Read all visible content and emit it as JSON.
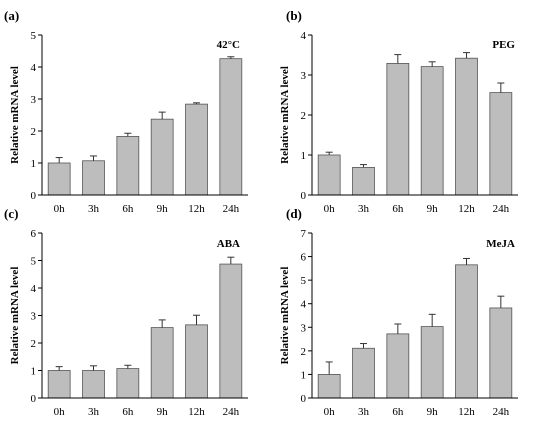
{
  "colors": {
    "bar": "#bdbdbd",
    "bar_edge": "#555555",
    "axis": "#000000"
  },
  "chart_data": [
    {
      "type": "bar",
      "panel": "(a)",
      "treatment": "42°C",
      "categories": [
        "0h",
        "3h",
        "6h",
        "9h",
        "12h",
        "24h"
      ],
      "values": [
        1.0,
        1.07,
        1.83,
        2.37,
        2.84,
        4.26
      ],
      "errors": [
        0.17,
        0.15,
        0.1,
        0.22,
        0.04,
        0.06
      ],
      "ylabel": "Relative mRNA level",
      "ylim": [
        0,
        5
      ],
      "yticks": [
        0,
        1,
        2,
        3,
        4,
        5
      ]
    },
    {
      "type": "bar",
      "panel": "(b)",
      "treatment": "PEG",
      "categories": [
        "0h",
        "3h",
        "6h",
        "9h",
        "12h",
        "24h"
      ],
      "values": [
        1.0,
        0.69,
        3.29,
        3.21,
        3.42,
        2.56
      ],
      "errors": [
        0.07,
        0.07,
        0.22,
        0.12,
        0.14,
        0.24
      ],
      "ylabel": "Relative mRNA level",
      "ylim": [
        0,
        4
      ],
      "yticks": [
        0,
        1,
        2,
        3,
        4
      ]
    },
    {
      "type": "bar",
      "panel": "(c)",
      "treatment": "ABA",
      "categories": [
        "0h",
        "3h",
        "6h",
        "9h",
        "12h",
        "24h"
      ],
      "values": [
        1.0,
        1.0,
        1.07,
        2.56,
        2.66,
        4.87
      ],
      "errors": [
        0.14,
        0.17,
        0.12,
        0.28,
        0.35,
        0.25
      ],
      "ylabel": "Relative mRNA level",
      "ylim": [
        0,
        6
      ],
      "yticks": [
        0,
        1,
        2,
        3,
        4,
        5,
        6
      ]
    },
    {
      "type": "bar",
      "panel": "(d)",
      "treatment": "MeJA",
      "categories": [
        "0h",
        "3h",
        "6h",
        "9h",
        "12h",
        "24h"
      ],
      "values": [
        1.0,
        2.11,
        2.72,
        3.03,
        5.65,
        3.82
      ],
      "errors": [
        0.53,
        0.2,
        0.42,
        0.52,
        0.27,
        0.5
      ],
      "ylabel": "Relative mRNA level",
      "ylim": [
        0,
        7
      ],
      "yticks": [
        0,
        1,
        2,
        3,
        4,
        5,
        6,
        7
      ]
    }
  ]
}
